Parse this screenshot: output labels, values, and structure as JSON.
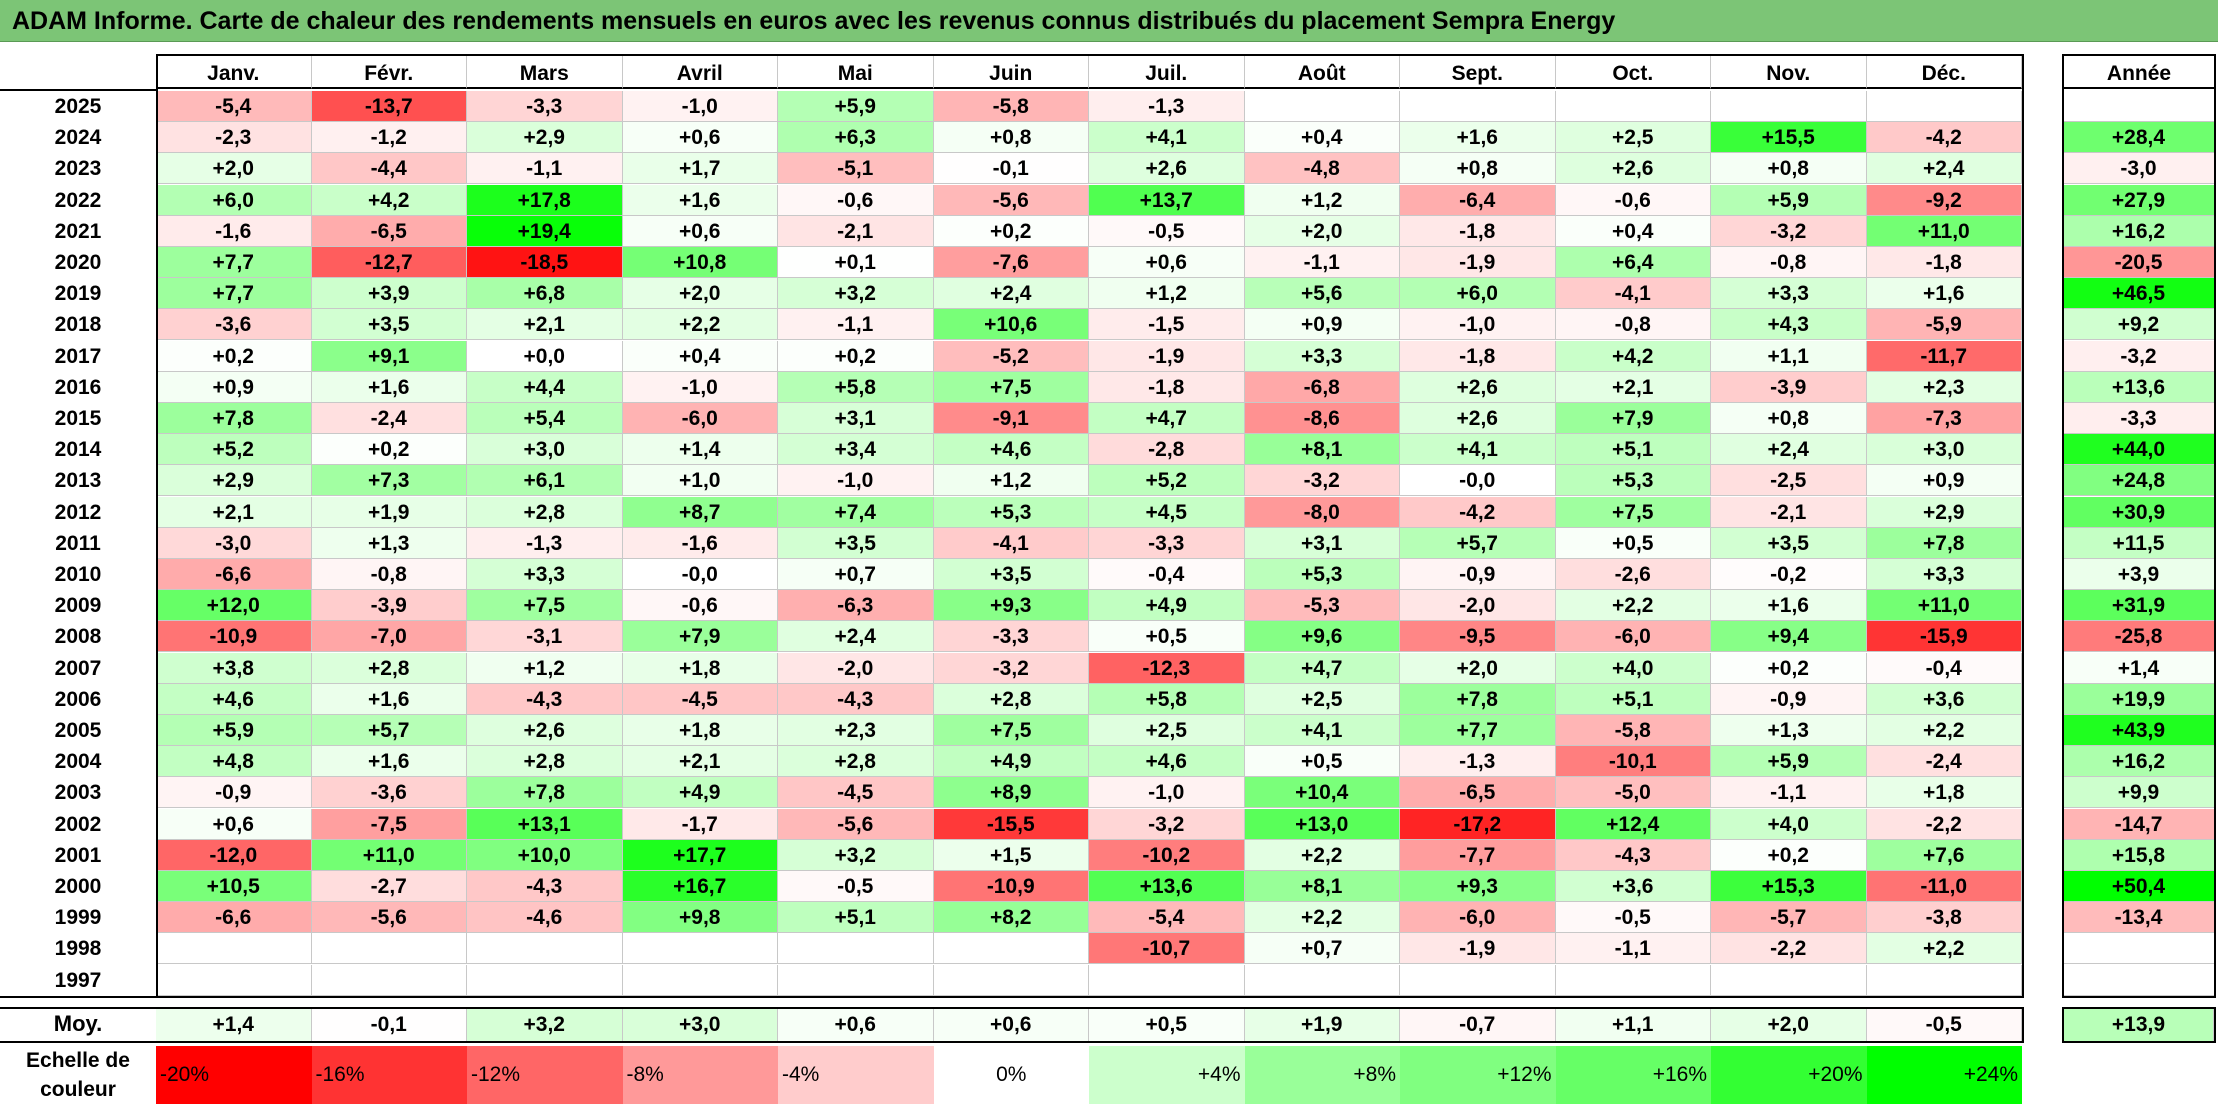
{
  "title": "ADAM Informe. Carte de chaleur des rendements mensuels en euros avec les revenus connus distribués du placement Sempra Energy",
  "chart_data": {
    "type": "heatmap",
    "months": [
      "Janv.",
      "Févr.",
      "Mars",
      "Avril",
      "Mai",
      "Juin",
      "Juil.",
      "Août",
      "Sept.",
      "Oct.",
      "Nov.",
      "Déc."
    ],
    "annual_header": "Année",
    "rows": [
      {
        "year": "2025",
        "values": [
          "-5,4",
          "-13,7",
          "-3,3",
          "-1,0",
          "+5,9",
          "-5,8",
          "-1,3",
          "",
          "",
          "",
          "",
          ""
        ],
        "annual": ""
      },
      {
        "year": "2024",
        "values": [
          "-2,3",
          "-1,2",
          "+2,9",
          "+0,6",
          "+6,3",
          "+0,8",
          "+4,1",
          "+0,4",
          "+1,6",
          "+2,5",
          "+15,5",
          "-4,2"
        ],
        "annual": "+28,4"
      },
      {
        "year": "2023",
        "values": [
          "+2,0",
          "-4,4",
          "-1,1",
          "+1,7",
          "-5,1",
          "-0,1",
          "+2,6",
          "-4,8",
          "+0,8",
          "+2,6",
          "+0,8",
          "+2,4"
        ],
        "annual": "-3,0"
      },
      {
        "year": "2022",
        "values": [
          "+6,0",
          "+4,2",
          "+17,8",
          "+1,6",
          "-0,6",
          "-5,6",
          "+13,7",
          "+1,2",
          "-6,4",
          "-0,6",
          "+5,9",
          "-9,2"
        ],
        "annual": "+27,9"
      },
      {
        "year": "2021",
        "values": [
          "-1,6",
          "-6,5",
          "+19,4",
          "+0,6",
          "-2,1",
          "+0,2",
          "-0,5",
          "+2,0",
          "-1,8",
          "+0,4",
          "-3,2",
          "+11,0"
        ],
        "annual": "+16,2"
      },
      {
        "year": "2020",
        "values": [
          "+7,7",
          "-12,7",
          "-18,5",
          "+10,8",
          "+0,1",
          "-7,6",
          "+0,6",
          "-1,1",
          "-1,9",
          "+6,4",
          "-0,8",
          "-1,8"
        ],
        "annual": "-20,5"
      },
      {
        "year": "2019",
        "values": [
          "+7,7",
          "+3,9",
          "+6,8",
          "+2,0",
          "+3,2",
          "+2,4",
          "+1,2",
          "+5,6",
          "+6,0",
          "-4,1",
          "+3,3",
          "+1,6"
        ],
        "annual": "+46,5"
      },
      {
        "year": "2018",
        "values": [
          "-3,6",
          "+3,5",
          "+2,1",
          "+2,2",
          "-1,1",
          "+10,6",
          "-1,5",
          "+0,9",
          "-1,0",
          "-0,8",
          "+4,3",
          "-5,9"
        ],
        "annual": "+9,2"
      },
      {
        "year": "2017",
        "values": [
          "+0,2",
          "+9,1",
          "+0,0",
          "+0,4",
          "+0,2",
          "-5,2",
          "-1,9",
          "+3,3",
          "-1,8",
          "+4,2",
          "+1,1",
          "-11,7"
        ],
        "annual": "-3,2"
      },
      {
        "year": "2016",
        "values": [
          "+0,9",
          "+1,6",
          "+4,4",
          "-1,0",
          "+5,8",
          "+7,5",
          "-1,8",
          "-6,8",
          "+2,6",
          "+2,1",
          "-3,9",
          "+2,3"
        ],
        "annual": "+13,6"
      },
      {
        "year": "2015",
        "values": [
          "+7,8",
          "-2,4",
          "+5,4",
          "-6,0",
          "+3,1",
          "-9,1",
          "+4,7",
          "-8,6",
          "+2,6",
          "+7,9",
          "+0,8",
          "-7,3"
        ],
        "annual": "-3,3"
      },
      {
        "year": "2014",
        "values": [
          "+5,2",
          "+0,2",
          "+3,0",
          "+1,4",
          "+3,4",
          "+4,6",
          "-2,8",
          "+8,1",
          "+4,1",
          "+5,1",
          "+2,4",
          "+3,0"
        ],
        "annual": "+44,0"
      },
      {
        "year": "2013",
        "values": [
          "+2,9",
          "+7,3",
          "+6,1",
          "+1,0",
          "-1,0",
          "+1,2",
          "+5,2",
          "-3,2",
          "-0,0",
          "+5,3",
          "-2,5",
          "+0,9"
        ],
        "annual": "+24,8"
      },
      {
        "year": "2012",
        "values": [
          "+2,1",
          "+1,9",
          "+2,8",
          "+8,7",
          "+7,4",
          "+5,3",
          "+4,5",
          "-8,0",
          "-4,2",
          "+7,5",
          "-2,1",
          "+2,9"
        ],
        "annual": "+30,9"
      },
      {
        "year": "2011",
        "values": [
          "-3,0",
          "+1,3",
          "-1,3",
          "-1,6",
          "+3,5",
          "-4,1",
          "-3,3",
          "+3,1",
          "+5,7",
          "+0,5",
          "+3,5",
          "+7,8"
        ],
        "annual": "+11,5"
      },
      {
        "year": "2010",
        "values": [
          "-6,6",
          "-0,8",
          "+3,3",
          "-0,0",
          "+0,7",
          "+3,5",
          "-0,4",
          "+5,3",
          "-0,9",
          "-2,6",
          "-0,2",
          "+3,3"
        ],
        "annual": "+3,9"
      },
      {
        "year": "2009",
        "values": [
          "+12,0",
          "-3,9",
          "+7,5",
          "-0,6",
          "-6,3",
          "+9,3",
          "+4,9",
          "-5,3",
          "-2,0",
          "+2,2",
          "+1,6",
          "+11,0"
        ],
        "annual": "+31,9"
      },
      {
        "year": "2008",
        "values": [
          "-10,9",
          "-7,0",
          "-3,1",
          "+7,9",
          "+2,4",
          "-3,3",
          "+0,5",
          "+9,6",
          "-9,5",
          "-6,0",
          "+9,4",
          "-15,9"
        ],
        "annual": "-25,8"
      },
      {
        "year": "2007",
        "values": [
          "+3,8",
          "+2,8",
          "+1,2",
          "+1,8",
          "-2,0",
          "-3,2",
          "-12,3",
          "+4,7",
          "+2,0",
          "+4,0",
          "+0,2",
          "-0,4"
        ],
        "annual": "+1,4"
      },
      {
        "year": "2006",
        "values": [
          "+4,6",
          "+1,6",
          "-4,3",
          "-4,5",
          "-4,3",
          "+2,8",
          "+5,8",
          "+2,5",
          "+7,8",
          "+5,1",
          "-0,9",
          "+3,6"
        ],
        "annual": "+19,9"
      },
      {
        "year": "2005",
        "values": [
          "+5,9",
          "+5,7",
          "+2,6",
          "+1,8",
          "+2,3",
          "+7,5",
          "+2,5",
          "+4,1",
          "+7,7",
          "-5,8",
          "+1,3",
          "+2,2"
        ],
        "annual": "+43,9"
      },
      {
        "year": "2004",
        "values": [
          "+4,8",
          "+1,6",
          "+2,8",
          "+2,1",
          "+2,8",
          "+4,9",
          "+4,6",
          "+0,5",
          "-1,3",
          "-10,1",
          "+5,9",
          "-2,4"
        ],
        "annual": "+16,2"
      },
      {
        "year": "2003",
        "values": [
          "-0,9",
          "-3,6",
          "+7,8",
          "+4,9",
          "-4,5",
          "+8,9",
          "-1,0",
          "+10,4",
          "-6,5",
          "-5,0",
          "-1,1",
          "+1,8"
        ],
        "annual": "+9,9"
      },
      {
        "year": "2002",
        "values": [
          "+0,6",
          "-7,5",
          "+13,1",
          "-1,7",
          "-5,6",
          "-15,5",
          "-3,2",
          "+13,0",
          "-17,2",
          "+12,4",
          "+4,0",
          "-2,2"
        ],
        "annual": "-14,7"
      },
      {
        "year": "2001",
        "values": [
          "-12,0",
          "+11,0",
          "+10,0",
          "+17,7",
          "+3,2",
          "+1,5",
          "-10,2",
          "+2,2",
          "-7,7",
          "-4,3",
          "+0,2",
          "+7,6"
        ],
        "annual": "+15,8"
      },
      {
        "year": "2000",
        "values": [
          "+10,5",
          "-2,7",
          "-4,3",
          "+16,7",
          "-0,5",
          "-10,9",
          "+13,6",
          "+8,1",
          "+9,3",
          "+3,6",
          "+15,3",
          "-11,0"
        ],
        "annual": "+50,4"
      },
      {
        "year": "1999",
        "values": [
          "-6,6",
          "-5,6",
          "-4,6",
          "+9,8",
          "+5,1",
          "+8,2",
          "-5,4",
          "+2,2",
          "-6,0",
          "-0,5",
          "-5,7",
          "-3,8"
        ],
        "annual": "-13,4"
      },
      {
        "year": "1998",
        "values": [
          "",
          "",
          "",
          "",
          "",
          "",
          "-10,7",
          "+0,7",
          "-1,9",
          "-1,1",
          "-2,2",
          "+2,2"
        ],
        "annual": ""
      },
      {
        "year": "1997",
        "values": [
          "",
          "",
          "",
          "",
          "",
          "",
          "",
          "",
          "",
          "",
          "",
          ""
        ],
        "annual": ""
      }
    ],
    "average": {
      "label": "Moy.",
      "values": [
        "+1,4",
        "-0,1",
        "+3,2",
        "+3,0",
        "+0,6",
        "+0,6",
        "+0,5",
        "+1,9",
        "-0,7",
        "+1,1",
        "+2,0",
        "-0,5"
      ],
      "annual": "+13,9"
    },
    "color_scale": {
      "label_line1": "Echelle de",
      "label_line2": "couleur",
      "stops": [
        {
          "label": "-20%",
          "value": -20,
          "color": "#ff0000"
        },
        {
          "label": "-16%",
          "value": -16,
          "color": "#ff3333"
        },
        {
          "label": "-12%",
          "value": -12,
          "color": "#ff6666"
        },
        {
          "label": "-8%",
          "value": -8,
          "color": "#ff9999"
        },
        {
          "label": "-4%",
          "value": -4,
          "color": "#ffcccc"
        },
        {
          "label": "0%",
          "value": 0,
          "color": "#ffffff"
        },
        {
          "label": "+4%",
          "value": 4,
          "color": "#ccffcc"
        },
        {
          "label": "+8%",
          "value": 8,
          "color": "#99ff99"
        },
        {
          "label": "+12%",
          "value": 12,
          "color": "#80ff80"
        },
        {
          "label": "+16%",
          "value": 16,
          "color": "#66ff66"
        },
        {
          "label": "+20%",
          "value": 20,
          "color": "#33ff33"
        },
        {
          "label": "+24%",
          "value": 24,
          "color": "#00ff00"
        }
      ]
    }
  }
}
